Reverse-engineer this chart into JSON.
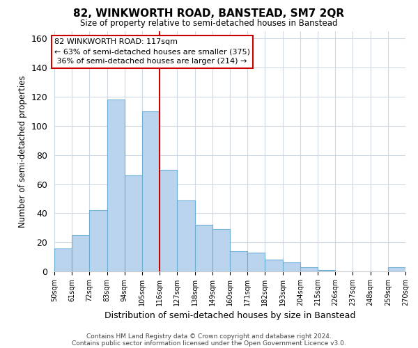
{
  "title": "82, WINKWORTH ROAD, BANSTEAD, SM7 2QR",
  "subtitle": "Size of property relative to semi-detached houses in Banstead",
  "xlabel": "Distribution of semi-detached houses by size in Banstead",
  "ylabel": "Number of semi-detached properties",
  "bin_labels": [
    "50sqm",
    "61sqm",
    "72sqm",
    "83sqm",
    "94sqm",
    "105sqm",
    "116sqm",
    "127sqm",
    "138sqm",
    "149sqm",
    "160sqm",
    "171sqm",
    "182sqm",
    "193sqm",
    "204sqm",
    "215sqm",
    "226sqm",
    "237sqm",
    "248sqm",
    "259sqm",
    "270sqm"
  ],
  "bin_edges": [
    50,
    61,
    72,
    83,
    94,
    105,
    116,
    127,
    138,
    149,
    160,
    171,
    182,
    193,
    204,
    215,
    226,
    237,
    248,
    259,
    270
  ],
  "bar_heights": [
    16,
    25,
    42,
    118,
    66,
    110,
    70,
    49,
    32,
    29,
    14,
    13,
    8,
    6,
    3,
    1,
    0,
    0,
    0,
    3
  ],
  "bar_color": "#bad4ee",
  "bar_edge_color": "#6aaed6",
  "marker_value": 116,
  "marker_color": "#cc0000",
  "ylim": [
    0,
    165
  ],
  "yticks": [
    0,
    20,
    40,
    60,
    80,
    100,
    120,
    140,
    160
  ],
  "annotation_title": "82 WINKWORTH ROAD: 117sqm",
  "annotation_line1": "← 63% of semi-detached houses are smaller (375)",
  "annotation_line2": " 36% of semi-detached houses are larger (214) →",
  "annotation_box_color": "#ffffff",
  "annotation_box_edge": "#cc0000",
  "footer1": "Contains HM Land Registry data © Crown copyright and database right 2024.",
  "footer2": "Contains public sector information licensed under the Open Government Licence v3.0.",
  "background_color": "#ffffff",
  "grid_color": "#d0d8e4"
}
